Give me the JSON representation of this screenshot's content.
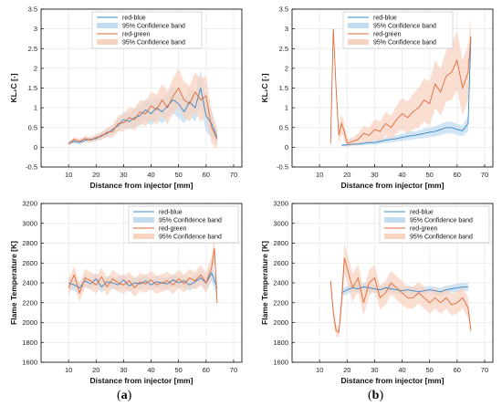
{
  "panel_labels": [
    "(a)",
    "(b)"
  ],
  "legend_items": [
    "red-blue",
    "95% Confidence band",
    "red-green",
    "95% Confidence band"
  ],
  "colors": {
    "blue": "#3a88c8",
    "blue_band": "#c3dcf0",
    "orange": "#e06a3b",
    "orange_band": "#f7d3c2",
    "grid": "#e6e6e6",
    "axis": "#000000"
  },
  "chart_data": [
    {
      "type": "line",
      "panel": "(a)",
      "xlabel": "Distance from injector [mm]",
      "ylabel": "KL₂C [-]",
      "xlim": [
        0,
        73
      ],
      "ylim": [
        -0.5,
        3.5
      ],
      "xticks": [
        10,
        20,
        30,
        40,
        50,
        60,
        70
      ],
      "yticks": [
        -0.5,
        0,
        0.5,
        1,
        1.5,
        2,
        2.5,
        3,
        3.5
      ],
      "ytick_labels": [
        "-0.5",
        "0",
        "0.5",
        "1",
        "1.5",
        "2",
        "2.5",
        "3",
        "3.5"
      ],
      "grid": true,
      "legend_position": "top-center",
      "series": [
        {
          "name": "red-blue",
          "color": "#3a88c8",
          "x": [
            10,
            12,
            14,
            16,
            18,
            20,
            22,
            24,
            26,
            28,
            30,
            32,
            34,
            36,
            38,
            40,
            42,
            44,
            46,
            48,
            50,
            52,
            54,
            56,
            58,
            60,
            62,
            64
          ],
          "y": [
            0.1,
            0.15,
            0.12,
            0.18,
            0.2,
            0.22,
            0.3,
            0.35,
            0.45,
            0.55,
            0.7,
            0.65,
            0.75,
            0.8,
            0.95,
            0.85,
            1.0,
            0.9,
            1.05,
            1.2,
            1.1,
            0.9,
            1.15,
            1.0,
            1.5,
            0.8,
            0.6,
            0.25
          ],
          "band_halfwidth": [
            0.05,
            0.05,
            0.05,
            0.06,
            0.06,
            0.07,
            0.08,
            0.1,
            0.12,
            0.15,
            0.2,
            0.2,
            0.22,
            0.25,
            0.28,
            0.3,
            0.3,
            0.3,
            0.32,
            0.35,
            0.35,
            0.3,
            0.35,
            0.35,
            0.45,
            0.4,
            0.35,
            0.2
          ]
        },
        {
          "name": "red-green",
          "color": "#e06a3b",
          "x": [
            10,
            12,
            14,
            16,
            18,
            20,
            22,
            24,
            26,
            28,
            30,
            32,
            34,
            36,
            38,
            40,
            42,
            44,
            46,
            48,
            50,
            52,
            54,
            56,
            58,
            60,
            62,
            64
          ],
          "y": [
            0.08,
            0.2,
            0.15,
            0.22,
            0.18,
            0.25,
            0.28,
            0.38,
            0.4,
            0.6,
            0.62,
            0.75,
            0.7,
            0.9,
            0.85,
            1.05,
            0.95,
            1.2,
            1.0,
            1.3,
            1.5,
            1.2,
            1.1,
            1.4,
            1.2,
            1.3,
            0.5,
            0.2
          ],
          "band_halfwidth": [
            0.05,
            0.06,
            0.06,
            0.07,
            0.07,
            0.08,
            0.1,
            0.12,
            0.15,
            0.2,
            0.22,
            0.25,
            0.28,
            0.3,
            0.32,
            0.35,
            0.38,
            0.4,
            0.42,
            0.45,
            0.5,
            0.45,
            0.45,
            0.5,
            0.55,
            0.5,
            0.4,
            0.25
          ]
        }
      ]
    },
    {
      "type": "line",
      "panel": "(b)",
      "xlabel": "Distance from injector [mm]",
      "ylabel": "KL₂C [-]",
      "xlim": [
        0,
        73
      ],
      "ylim": [
        -0.5,
        3.5
      ],
      "xticks": [
        10,
        20,
        30,
        40,
        50,
        60,
        70
      ],
      "yticks": [
        -0.5,
        0,
        0.5,
        1,
        1.5,
        2,
        2.5,
        3,
        3.5
      ],
      "ytick_labels": [
        "-0.5",
        "0",
        "0.5",
        "1",
        "1.5",
        "2",
        "2.5",
        "3",
        "3.5"
      ],
      "grid": true,
      "legend_position": "top-center",
      "series": [
        {
          "name": "red-blue",
          "color": "#3a88c8",
          "x": [
            18,
            20,
            22,
            24,
            26,
            28,
            30,
            32,
            34,
            36,
            38,
            40,
            42,
            44,
            46,
            48,
            50,
            52,
            54,
            56,
            58,
            60,
            62,
            64,
            65
          ],
          "y": [
            0.05,
            0.06,
            0.08,
            0.08,
            0.1,
            0.12,
            0.12,
            0.15,
            0.18,
            0.2,
            0.22,
            0.25,
            0.28,
            0.3,
            0.32,
            0.35,
            0.38,
            0.4,
            0.45,
            0.5,
            0.5,
            0.45,
            0.42,
            0.6,
            2.8
          ],
          "band_halfwidth": [
            0.03,
            0.03,
            0.04,
            0.04,
            0.05,
            0.05,
            0.06,
            0.06,
            0.07,
            0.08,
            0.08,
            0.09,
            0.1,
            0.1,
            0.11,
            0.12,
            0.12,
            0.13,
            0.14,
            0.15,
            0.15,
            0.14,
            0.14,
            0.2,
            0.3
          ]
        },
        {
          "name": "red-green",
          "color": "#e06a3b",
          "x": [
            14,
            15,
            16,
            17,
            18,
            19,
            20,
            22,
            24,
            26,
            28,
            30,
            32,
            34,
            36,
            38,
            40,
            42,
            44,
            46,
            48,
            50,
            52,
            54,
            56,
            58,
            60,
            62,
            64,
            65
          ],
          "y": [
            0.1,
            3.0,
            1.5,
            0.3,
            0.6,
            0.4,
            0.1,
            0.15,
            0.2,
            0.35,
            0.3,
            0.45,
            0.4,
            0.6,
            0.5,
            0.7,
            0.85,
            0.75,
            0.9,
            1.0,
            1.2,
            1.1,
            1.6,
            1.4,
            1.8,
            1.9,
            2.2,
            1.5,
            1.9,
            2.8
          ],
          "band_halfwidth": [
            0.1,
            0.0,
            0.2,
            0.2,
            0.25,
            0.2,
            0.1,
            0.1,
            0.15,
            0.2,
            0.2,
            0.25,
            0.25,
            0.3,
            0.3,
            0.35,
            0.4,
            0.4,
            0.45,
            0.5,
            0.55,
            0.55,
            0.6,
            0.6,
            0.65,
            0.7,
            0.75,
            0.7,
            0.7,
            0.5
          ]
        }
      ]
    },
    {
      "type": "line",
      "panel": "(a)",
      "xlabel": "Distance from injector [mm]",
      "ylabel": "Flame Temperature [K]",
      "xlim": [
        0,
        73
      ],
      "ylim": [
        1600,
        3200
      ],
      "xticks": [
        10,
        20,
        30,
        40,
        50,
        60,
        70
      ],
      "yticks": [
        1600,
        1800,
        2000,
        2200,
        2400,
        2600,
        2800,
        3000,
        3200
      ],
      "ytick_labels": [
        "1600",
        "1800",
        "2000",
        "2200",
        "2400",
        "2600",
        "2800",
        "3000",
        "3200"
      ],
      "grid": true,
      "legend_position": "top-right",
      "series": [
        {
          "name": "red-blue",
          "color": "#3a88c8",
          "x": [
            10,
            12,
            14,
            16,
            18,
            20,
            22,
            24,
            26,
            28,
            30,
            32,
            34,
            36,
            38,
            40,
            42,
            44,
            46,
            48,
            50,
            52,
            54,
            56,
            58,
            60,
            62,
            64
          ],
          "y": [
            2400,
            2380,
            2350,
            2420,
            2390,
            2440,
            2360,
            2410,
            2400,
            2380,
            2430,
            2370,
            2400,
            2390,
            2420,
            2380,
            2410,
            2400,
            2390,
            2430,
            2400,
            2420,
            2380,
            2410,
            2450,
            2400,
            2500,
            2350
          ],
          "band_halfwidth": [
            60,
            60,
            60,
            60,
            60,
            60,
            60,
            60,
            60,
            60,
            60,
            60,
            60,
            60,
            60,
            60,
            60,
            60,
            60,
            60,
            60,
            60,
            60,
            60,
            70,
            70,
            80,
            80
          ]
        },
        {
          "name": "red-green",
          "color": "#e06a3b",
          "x": [
            10,
            12,
            14,
            16,
            18,
            20,
            22,
            24,
            26,
            28,
            30,
            32,
            34,
            36,
            38,
            40,
            42,
            44,
            46,
            48,
            50,
            52,
            54,
            56,
            58,
            60,
            62,
            63,
            64
          ],
          "y": [
            2350,
            2480,
            2300,
            2450,
            2420,
            2380,
            2460,
            2360,
            2440,
            2400,
            2380,
            2420,
            2350,
            2410,
            2390,
            2430,
            2380,
            2400,
            2420,
            2380,
            2440,
            2390,
            2450,
            2420,
            2480,
            2400,
            2550,
            2750,
            2200
          ],
          "band_halfwidth": [
            80,
            90,
            90,
            90,
            90,
            90,
            90,
            90,
            90,
            90,
            90,
            90,
            90,
            90,
            90,
            90,
            90,
            90,
            90,
            90,
            90,
            90,
            90,
            90,
            100,
            100,
            120,
            120,
            100
          ]
        }
      ]
    },
    {
      "type": "line",
      "panel": "(b)",
      "xlabel": "Distance from injector [mm]",
      "ylabel": "Flame Temperature [K]",
      "xlim": [
        0,
        73
      ],
      "ylim": [
        1600,
        3200
      ],
      "xticks": [
        10,
        20,
        30,
        40,
        50,
        60,
        70
      ],
      "yticks": [
        1600,
        1800,
        2000,
        2200,
        2400,
        2600,
        2800,
        3000,
        3200
      ],
      "ytick_labels": [
        "1600",
        "1800",
        "2000",
        "2200",
        "2400",
        "2600",
        "2800",
        "3000",
        "3200"
      ],
      "grid": true,
      "legend_position": "top-right",
      "series": [
        {
          "name": "red-blue",
          "color": "#3a88c8",
          "x": [
            18,
            20,
            22,
            24,
            26,
            28,
            30,
            32,
            34,
            36,
            38,
            40,
            42,
            44,
            46,
            48,
            50,
            52,
            54,
            56,
            58,
            60,
            62,
            64
          ],
          "y": [
            2300,
            2330,
            2350,
            2340,
            2360,
            2350,
            2340,
            2330,
            2350,
            2340,
            2330,
            2320,
            2330,
            2320,
            2310,
            2320,
            2330,
            2320,
            2310,
            2330,
            2340,
            2350,
            2360,
            2360
          ],
          "band_halfwidth": [
            40,
            40,
            40,
            40,
            40,
            40,
            40,
            40,
            40,
            40,
            40,
            40,
            40,
            40,
            40,
            40,
            40,
            40,
            40,
            40,
            40,
            40,
            40,
            40
          ]
        },
        {
          "name": "red-green",
          "color": "#e06a3b",
          "x": [
            14,
            15,
            16,
            17,
            18,
            19,
            20,
            22,
            24,
            26,
            28,
            30,
            32,
            34,
            36,
            38,
            40,
            42,
            44,
            46,
            48,
            50,
            52,
            54,
            56,
            58,
            60,
            62,
            64,
            65
          ],
          "y": [
            2420,
            2100,
            1920,
            1900,
            2200,
            2650,
            2550,
            2350,
            2450,
            2200,
            2400,
            2450,
            2250,
            2300,
            2400,
            2350,
            2300,
            2250,
            2250,
            2300,
            2250,
            2200,
            2250,
            2200,
            2250,
            2180,
            2200,
            2250,
            2150,
            1920
          ],
          "band_halfwidth": [
            60,
            80,
            60,
            50,
            120,
            150,
            150,
            140,
            140,
            130,
            130,
            130,
            120,
            120,
            120,
            120,
            120,
            110,
            110,
            110,
            110,
            110,
            110,
            110,
            110,
            110,
            110,
            110,
            100,
            60
          ]
        }
      ]
    }
  ]
}
